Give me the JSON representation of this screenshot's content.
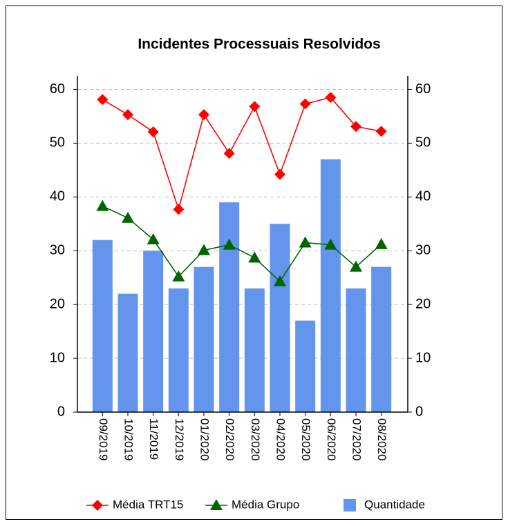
{
  "chart_data": {
    "type": "bar",
    "title": "Incidentes Processuais Resolvidos",
    "categories": [
      "09/2019",
      "10/2019",
      "11/2019",
      "12/2019",
      "01/2020",
      "02/2020",
      "03/2020",
      "04/2020",
      "05/2020",
      "06/2020",
      "07/2020",
      "08/2020"
    ],
    "series": [
      {
        "name": "Média TRT15",
        "type": "line",
        "marker": "diamond",
        "color": "#ff0000",
        "values": [
          58.1,
          55.3,
          52.1,
          37.7,
          55.3,
          48.1,
          56.8,
          44.2,
          57.3,
          58.5,
          53.1,
          52.2
        ]
      },
      {
        "name": "Média Grupo",
        "type": "line",
        "marker": "triangle",
        "color": "#006400",
        "values": [
          38.3,
          36.1,
          32.1,
          25.2,
          30.1,
          31.1,
          28.7,
          24.3,
          31.5,
          31.1,
          27,
          31.2
        ]
      },
      {
        "name": "Quantidade",
        "type": "bar",
        "color": "#6495ed",
        "values": [
          32,
          22,
          30,
          23,
          27,
          39,
          23,
          35,
          17,
          47,
          23,
          27
        ]
      }
    ],
    "ylim": [
      0,
      62.5
    ],
    "yticks": [
      0,
      10,
      20,
      30,
      40,
      50,
      60
    ],
    "y2lim": [
      0,
      62.5
    ],
    "y2ticks": [
      0,
      10,
      20,
      30,
      40,
      50,
      60
    ],
    "grid": true,
    "legend": "bottom"
  }
}
